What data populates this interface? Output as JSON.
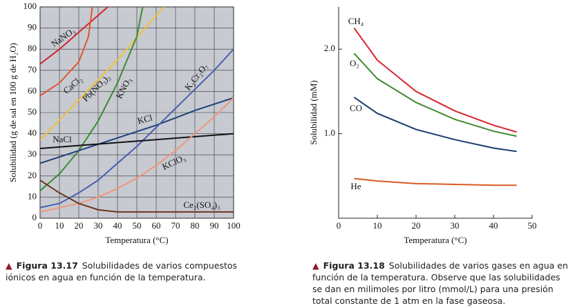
{
  "chart_data": [
    {
      "type": "line",
      "xlabel": "Temperatura (°C)",
      "ylabel": "Solubilidad (g de sal en 100 g de H₂O)",
      "xlim": [
        0,
        100
      ],
      "ylim": [
        0,
        100
      ],
      "xticks": [
        0,
        10,
        20,
        30,
        40,
        50,
        60,
        70,
        80,
        90,
        100
      ],
      "yticks": [
        0,
        10,
        20,
        30,
        40,
        50,
        60,
        70,
        80,
        90,
        100
      ],
      "grid": true,
      "series": [
        {
          "name": "NaNO₃",
          "color": "#d1252f",
          "x": [
            0,
            10,
            20,
            30,
            35
          ],
          "values": [
            73,
            80,
            88,
            96,
            100
          ]
        },
        {
          "name": "CaCl₂",
          "color": "#e0542a",
          "x": [
            0,
            10,
            20,
            25,
            27
          ],
          "values": [
            58,
            64,
            74,
            86,
            100
          ]
        },
        {
          "name": "Pb(NO₃)₂",
          "color": "#f2c234",
          "x": [
            0,
            20,
            40,
            64
          ],
          "values": [
            37,
            56,
            75,
            100
          ]
        },
        {
          "name": "KNO₃",
          "color": "#3a8a35",
          "x": [
            0,
            10,
            20,
            30,
            40,
            50,
            53
          ],
          "values": [
            13,
            21,
            32,
            46,
            64,
            86,
            100
          ]
        },
        {
          "name": "KCl",
          "color": "#1f3f78",
          "x": [
            0,
            20,
            40,
            60,
            80,
            100
          ],
          "values": [
            26,
            32,
            38,
            44,
            51,
            57
          ]
        },
        {
          "name": "K₂Cr₂O₇",
          "color": "#4a5fb0",
          "x": [
            0,
            10,
            20,
            30,
            40,
            50,
            60,
            70,
            80,
            90,
            100
          ],
          "values": [
            5,
            7,
            12,
            18,
            26,
            34,
            43,
            52,
            61,
            70,
            80
          ]
        },
        {
          "name": "NaCl",
          "color": "#111111",
          "x": [
            0,
            100
          ],
          "values": [
            33,
            40
          ]
        },
        {
          "name": "KClO₃",
          "color": "#f0967a",
          "x": [
            0,
            10,
            20,
            30,
            40,
            50,
            60,
            70,
            80,
            90,
            100
          ],
          "values": [
            3,
            5,
            7,
            10,
            14,
            19,
            25,
            32,
            40,
            48,
            57
          ]
        },
        {
          "name": "Ce₂(SO₄)₃",
          "color": "#6b3520",
          "x": [
            0,
            10,
            20,
            30,
            40,
            100
          ],
          "values": [
            18,
            12,
            7,
            4,
            3,
            3
          ]
        }
      ],
      "figure_label": "Figura 13.17",
      "caption": "Solubilidades de varios compuestos iónicos en agua en función de la temperatura."
    },
    {
      "type": "line",
      "xlabel": "Temperatura (°C)",
      "ylabel": "Solubilidad (mM)",
      "xlim": [
        0,
        50
      ],
      "ylim": [
        0,
        2.5
      ],
      "xticks": [
        0,
        10,
        20,
        30,
        40,
        50
      ],
      "yticks": [
        {
          "value": 1,
          "label": "1.0"
        },
        {
          "value": 2,
          "label": "2.0"
        }
      ],
      "grid": false,
      "series": [
        {
          "name": "CH₄",
          "color": "#d8222b",
          "x": [
            4,
            10,
            20,
            30,
            40,
            46
          ],
          "values": [
            2.25,
            1.87,
            1.5,
            1.27,
            1.1,
            1.02
          ]
        },
        {
          "name": "O₂",
          "color": "#3f8a2f",
          "x": [
            4,
            10,
            20,
            30,
            40,
            46
          ],
          "values": [
            1.95,
            1.65,
            1.37,
            1.17,
            1.03,
            0.97
          ]
        },
        {
          "name": "CO",
          "color": "#1a3a6b",
          "x": [
            4,
            10,
            20,
            30,
            40,
            46
          ],
          "values": [
            1.43,
            1.24,
            1.05,
            0.93,
            0.83,
            0.79
          ]
        },
        {
          "name": "He",
          "color": "#d85a20",
          "x": [
            4,
            10,
            20,
            30,
            40,
            46
          ],
          "values": [
            0.47,
            0.44,
            0.41,
            0.4,
            0.39,
            0.39
          ]
        }
      ],
      "figure_label": "Figura 13.18",
      "caption": "Solubilidades de varios gases en agua en función de la temperatura. Observe que las solubilidades se dan en milimoles por litro (mmol/L) para una presión total constante de 1 atm en la fase gaseosa."
    }
  ]
}
